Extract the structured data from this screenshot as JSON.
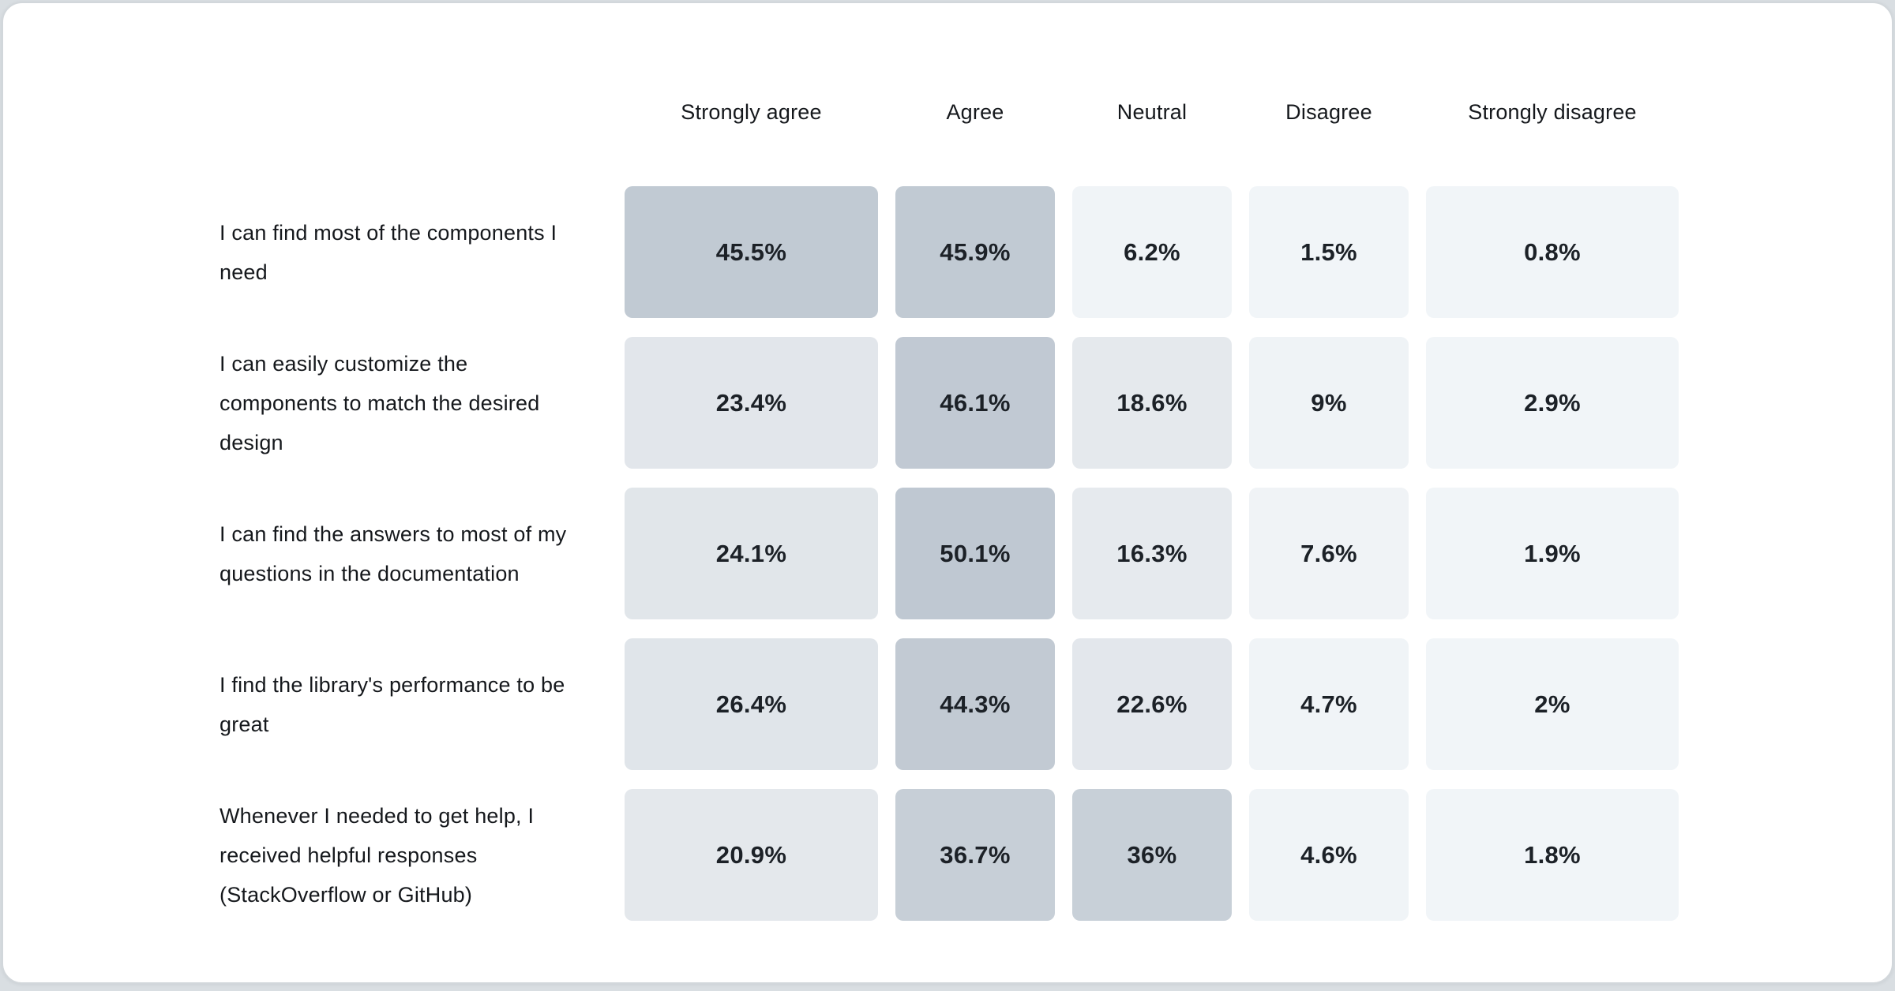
{
  "page": {
    "card_background": "#ffffff",
    "card_border_color": "#d2d7db",
    "page_background": "#d9dee2",
    "text_color": "#15181c"
  },
  "chart_data": {
    "type": "heatmap",
    "title": "",
    "value_unit": "%",
    "legend_position": "none",
    "color_scale": {
      "low": "#f1f5f8",
      "high": "#bfc8d2",
      "max_value": 50.1
    },
    "columns": [
      "Strongly agree",
      "Agree",
      "Neutral",
      "Disagree",
      "Strongly disagree"
    ],
    "rows": [
      {
        "label": "I can find most of the components I need",
        "values": [
          45.5,
          45.9,
          6.2,
          1.5,
          0.8
        ],
        "display": [
          "45.5%",
          "45.9%",
          "6.2%",
          "1.5%",
          "0.8%"
        ],
        "colors": [
          "#c1cad3",
          "#c1cad3",
          "#f0f4f7",
          "#f1f5f8",
          "#f1f5f8"
        ]
      },
      {
        "label": "I can easily customize the components to match the desired design",
        "values": [
          23.4,
          46.1,
          18.6,
          9,
          2.9
        ],
        "display": [
          "23.4%",
          "46.1%",
          "18.6%",
          "9%",
          "2.9%"
        ],
        "colors": [
          "#e2e6eb",
          "#c1c9d3",
          "#e5e9ed",
          "#eff3f6",
          "#f1f5f8"
        ]
      },
      {
        "label": "I can find the answers to most of my questions in the documentation",
        "values": [
          24.1,
          50.1,
          16.3,
          7.6,
          1.9
        ],
        "display": [
          "24.1%",
          "50.1%",
          "16.3%",
          "7.6%",
          "1.9%"
        ],
        "colors": [
          "#e1e6ea",
          "#bfc8d2",
          "#e6eaee",
          "#f0f3f6",
          "#f1f5f8"
        ]
      },
      {
        "label": "I find the library's performance to be great",
        "values": [
          26.4,
          44.3,
          22.6,
          4.7,
          2
        ],
        "display": [
          "26.4%",
          "44.3%",
          "22.6%",
          "4.7%",
          "2%"
        ],
        "colors": [
          "#e0e5ea",
          "#c2cad3",
          "#e3e7ec",
          "#f0f4f7",
          "#f1f5f8"
        ]
      },
      {
        "label": "Whenever I needed to get help, I received helpful responses (StackOverflow or GitHub)",
        "values": [
          20.9,
          36.7,
          36,
          4.6,
          1.8
        ],
        "display": [
          "20.9%",
          "36.7%",
          "36%",
          "4.6%",
          "1.8%"
        ],
        "colors": [
          "#e4e8ec",
          "#c7cfd7",
          "#c8d0d8",
          "#f0f4f7",
          "#f1f5f8"
        ]
      }
    ]
  }
}
